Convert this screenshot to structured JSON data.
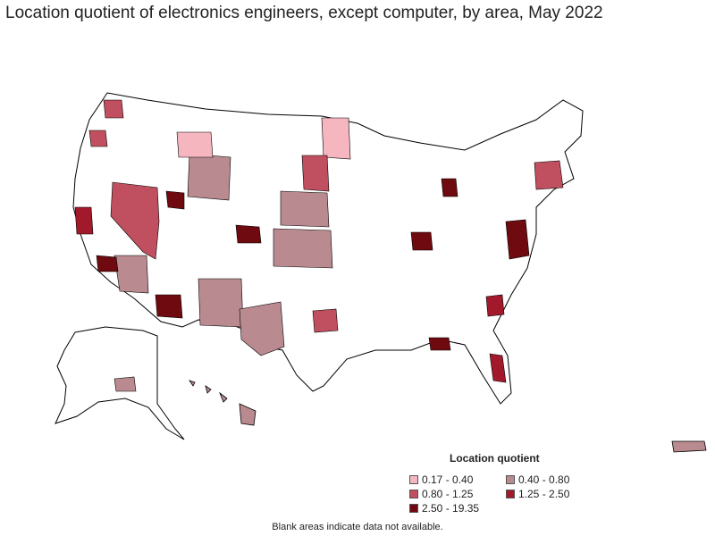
{
  "title": "Location quotient of electronics engineers, except computer, by area, May 2022",
  "legend": {
    "title": "Location quotient",
    "items": [
      {
        "label": "0.17 - 0.40",
        "color": "#f5b6c0"
      },
      {
        "label": "0.40 - 0.80",
        "color": "#b98a8f"
      },
      {
        "label": "0.80 - 1.25",
        "color": "#c0505f"
      },
      {
        "label": "1.25 - 2.50",
        "color": "#a3192c"
      },
      {
        "label": "2.50 - 19.35",
        "color": "#6e0a10"
      }
    ]
  },
  "footnote": "Blank areas indicate data not available.",
  "colors": {
    "outline": "#000000",
    "no_data": "#ffffff"
  }
}
